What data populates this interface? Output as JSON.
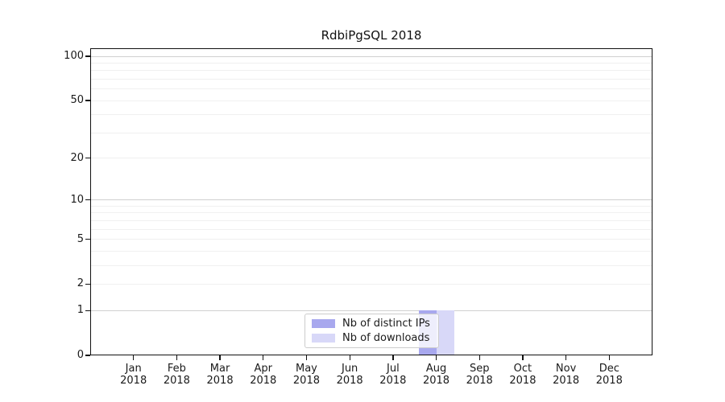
{
  "title": "RdbiPgSQL 2018",
  "chart_data": {
    "type": "bar",
    "title": "RdbiPgSQL 2018",
    "xlabel": "",
    "ylabel": "",
    "categories": [
      "Jan",
      "Feb",
      "Mar",
      "Apr",
      "May",
      "Jun",
      "Jul",
      "Aug",
      "Sep",
      "Oct",
      "Nov",
      "Dec"
    ],
    "category_year": "2018",
    "series": [
      {
        "name": "Nb of distinct IPs",
        "color": "#a8a8ee",
        "values": [
          0,
          0,
          0,
          0,
          0,
          0,
          0,
          1,
          0,
          0,
          0,
          0
        ]
      },
      {
        "name": "Nb of downloads",
        "color": "#d8d8f8",
        "values": [
          0,
          0,
          0,
          0,
          0,
          0,
          0,
          1,
          0,
          0,
          0,
          0
        ]
      }
    ],
    "yscale": "log1p",
    "ylim": [
      0,
      113
    ],
    "yticks": [
      0,
      1,
      2,
      5,
      10,
      20,
      50,
      100
    ],
    "grid": {
      "major_values": [
        1,
        10,
        100
      ],
      "minor_values": [
        2,
        3,
        4,
        5,
        6,
        7,
        8,
        9,
        20,
        30,
        40,
        50,
        60,
        70,
        80,
        90
      ],
      "major_color": "#d0d0d0",
      "minor_color": "#f0f0f0"
    },
    "legend_position": "lower center",
    "frame_color": "#111111",
    "background_color": "#ffffff"
  }
}
